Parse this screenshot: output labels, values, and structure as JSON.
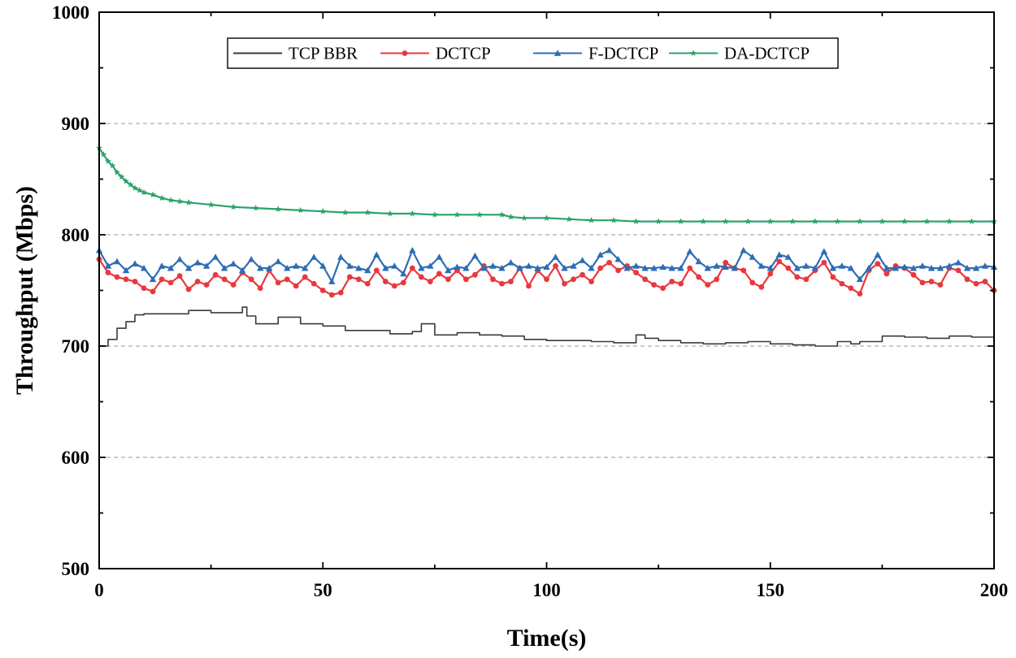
{
  "chart_data": {
    "type": "line",
    "xlabel": "Time(s)",
    "ylabel": "Throughput (Mbps)",
    "xlim": [
      0,
      200
    ],
    "ylim": [
      500,
      1000
    ],
    "xticks": [
      0,
      50,
      100,
      150,
      200
    ],
    "yticks": [
      500,
      600,
      700,
      800,
      900,
      1000
    ],
    "grid": "horizontal-dashed",
    "legend_position": "top",
    "series": [
      {
        "name": "TCP BBR",
        "color": "#3a3a3a",
        "marker": "none",
        "x": [
          0,
          2,
          4,
          6,
          8,
          10,
          15,
          20,
          25,
          30,
          32,
          33,
          35,
          40,
          45,
          50,
          55,
          60,
          65,
          70,
          72,
          75,
          80,
          85,
          90,
          95,
          100,
          105,
          110,
          115,
          120,
          122,
          125,
          130,
          135,
          140,
          145,
          150,
          155,
          160,
          165,
          168,
          170,
          175,
          180,
          185,
          190,
          195,
          200
        ],
        "y": [
          700,
          706,
          716,
          722,
          728,
          729,
          729,
          732,
          730,
          730,
          735,
          727,
          720,
          726,
          720,
          718,
          714,
          714,
          711,
          713,
          720,
          710,
          712,
          710,
          709,
          706,
          705,
          705,
          704,
          703,
          710,
          707,
          705,
          703,
          702,
          703,
          704,
          702,
          701,
          700,
          704,
          702,
          704,
          709,
          708,
          707,
          709,
          708,
          707
        ]
      },
      {
        "name": "DCTCP",
        "color": "#e8383d",
        "marker": "circle",
        "x": [
          0,
          2,
          4,
          6,
          8,
          10,
          12,
          14,
          16,
          18,
          20,
          22,
          24,
          26,
          28,
          30,
          32,
          34,
          36,
          38,
          40,
          42,
          44,
          46,
          48,
          50,
          52,
          54,
          56,
          58,
          60,
          62,
          64,
          66,
          68,
          70,
          72,
          74,
          76,
          78,
          80,
          82,
          84,
          86,
          88,
          90,
          92,
          94,
          96,
          98,
          100,
          102,
          104,
          106,
          108,
          110,
          112,
          114,
          116,
          118,
          120,
          122,
          124,
          126,
          128,
          130,
          132,
          134,
          136,
          138,
          140,
          142,
          144,
          146,
          148,
          150,
          152,
          154,
          156,
          158,
          160,
          162,
          164,
          166,
          168,
          170,
          172,
          174,
          176,
          178,
          180,
          182,
          184,
          186,
          188,
          190,
          192,
          194,
          196,
          198,
          200
        ],
        "y": [
          778,
          766,
          762,
          760,
          758,
          752,
          749,
          760,
          757,
          763,
          751,
          758,
          755,
          764,
          760,
          755,
          766,
          760,
          752,
          768,
          757,
          760,
          754,
          762,
          756,
          750,
          746,
          748,
          762,
          760,
          756,
          768,
          758,
          754,
          757,
          770,
          762,
          758,
          765,
          760,
          768,
          760,
          764,
          772,
          760,
          756,
          758,
          770,
          754,
          768,
          760,
          772,
          756,
          760,
          764,
          758,
          770,
          775,
          768,
          772,
          766,
          760,
          755,
          752,
          758,
          756,
          770,
          762,
          755,
          760,
          775,
          770,
          768,
          757,
          753,
          765,
          776,
          770,
          762,
          760,
          768,
          775,
          762,
          756,
          752,
          747,
          768,
          774,
          765,
          772,
          770,
          764,
          757,
          758,
          755,
          770,
          768,
          760,
          756,
          758,
          750
        ]
      },
      {
        "name": "F-DCTCP",
        "color": "#2d6db4",
        "marker": "triangle",
        "x": [
          0,
          2,
          4,
          6,
          8,
          10,
          12,
          14,
          16,
          18,
          20,
          22,
          24,
          26,
          28,
          30,
          32,
          34,
          36,
          38,
          40,
          42,
          44,
          46,
          48,
          50,
          52,
          54,
          56,
          58,
          60,
          62,
          64,
          66,
          68,
          70,
          72,
          74,
          76,
          78,
          80,
          82,
          84,
          86,
          88,
          90,
          92,
          94,
          96,
          98,
          100,
          102,
          104,
          106,
          108,
          110,
          112,
          114,
          116,
          118,
          120,
          122,
          124,
          126,
          128,
          130,
          132,
          134,
          136,
          138,
          140,
          142,
          144,
          146,
          148,
          150,
          152,
          154,
          156,
          158,
          160,
          162,
          164,
          166,
          168,
          170,
          172,
          174,
          176,
          178,
          180,
          182,
          184,
          186,
          188,
          190,
          192,
          194,
          196,
          198,
          200
        ],
        "y": [
          786,
          772,
          776,
          768,
          774,
          770,
          760,
          772,
          770,
          778,
          770,
          775,
          772,
          780,
          770,
          774,
          768,
          778,
          770,
          770,
          776,
          770,
          772,
          770,
          780,
          772,
          758,
          780,
          772,
          770,
          768,
          782,
          770,
          772,
          765,
          786,
          770,
          772,
          780,
          768,
          771,
          770,
          781,
          770,
          772,
          770,
          775,
          770,
          772,
          770,
          771,
          780,
          770,
          772,
          777,
          770,
          782,
          786,
          778,
          770,
          772,
          770,
          770,
          771,
          770,
          770,
          785,
          776,
          770,
          772,
          771,
          770,
          786,
          780,
          772,
          770,
          782,
          780,
          770,
          772,
          770,
          785,
          770,
          772,
          770,
          760,
          770,
          782,
          770,
          770,
          771,
          770,
          772,
          770,
          770,
          772,
          775,
          770,
          770,
          772,
          771
        ]
      },
      {
        "name": "DA-DCTCP",
        "color": "#2aa36b",
        "marker": "star",
        "x": [
          0,
          1,
          2,
          3,
          4,
          5,
          6,
          7,
          8,
          9,
          10,
          12,
          14,
          16,
          18,
          20,
          25,
          30,
          35,
          40,
          45,
          50,
          55,
          60,
          65,
          70,
          75,
          80,
          85,
          90,
          92,
          95,
          100,
          105,
          110,
          115,
          120,
          125,
          130,
          135,
          140,
          145,
          150,
          155,
          160,
          165,
          170,
          175,
          180,
          185,
          190,
          195,
          200
        ],
        "y": [
          878,
          872,
          866,
          862,
          856,
          852,
          848,
          845,
          842,
          840,
          838,
          836,
          833,
          831,
          830,
          829,
          827,
          825,
          824,
          823,
          822,
          821,
          820,
          820,
          819,
          819,
          818,
          818,
          818,
          818,
          816,
          815,
          815,
          814,
          813,
          813,
          812,
          812,
          812,
          812,
          812,
          812,
          812,
          812,
          812,
          812,
          812,
          812,
          812,
          812,
          812,
          812,
          812
        ]
      }
    ]
  }
}
